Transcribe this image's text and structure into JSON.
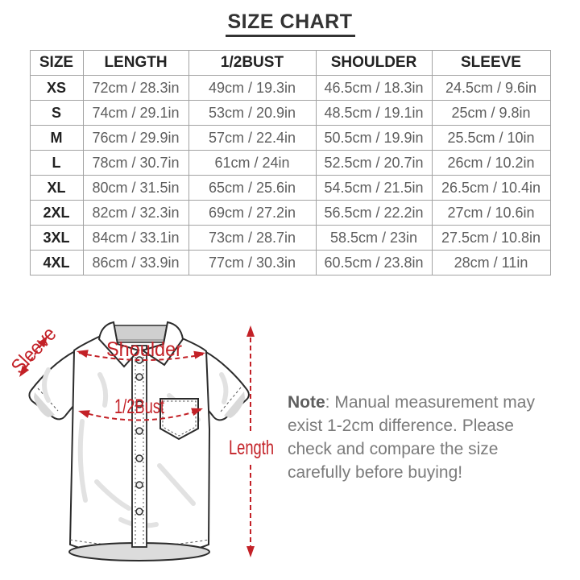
{
  "title": "SIZE CHART",
  "table": {
    "headers": [
      "SIZE",
      "LENGTH",
      "1/2BUST",
      "SHOULDER",
      "SLEEVE"
    ],
    "rows": [
      [
        "XS",
        "72cm / 28.3in",
        "49cm / 19.3in",
        "46.5cm / 18.3in",
        "24.5cm / 9.6in"
      ],
      [
        "S",
        "74cm / 29.1in",
        "53cm / 20.9in",
        "48.5cm / 19.1in",
        "25cm / 9.8in"
      ],
      [
        "M",
        "76cm / 29.9in",
        "57cm / 22.4in",
        "50.5cm / 19.9in",
        "25.5cm / 10in"
      ],
      [
        "L",
        "78cm / 30.7in",
        "61cm / 24in",
        "52.5cm / 20.7in",
        "26cm / 10.2in"
      ],
      [
        "XL",
        "80cm / 31.5in",
        "65cm / 25.6in",
        "54.5cm / 21.5in",
        "26.5cm / 10.4in"
      ],
      [
        "2XL",
        "82cm / 32.3in",
        "69cm / 27.2in",
        "56.5cm / 22.2in",
        "27cm / 10.6in"
      ],
      [
        "3XL",
        "84cm / 33.1in",
        "73cm / 28.7in",
        "58.5cm / 23in",
        "27.5cm / 10.8in"
      ],
      [
        "4XL",
        "86cm / 33.9in",
        "77cm / 30.3in",
        "60.5cm / 23.8in",
        "28cm / 11in"
      ]
    ]
  },
  "diagram": {
    "labels": {
      "sleeve": "Sleeve",
      "shoulder": "Shoulder",
      "bust": "1/2Bust",
      "length": "Length"
    },
    "accent_color": "#c32127"
  },
  "note": {
    "label": "Note",
    "text": ": Manual measurement may exist 1-2cm difference. Please check and compare the size carefully before buying!"
  }
}
